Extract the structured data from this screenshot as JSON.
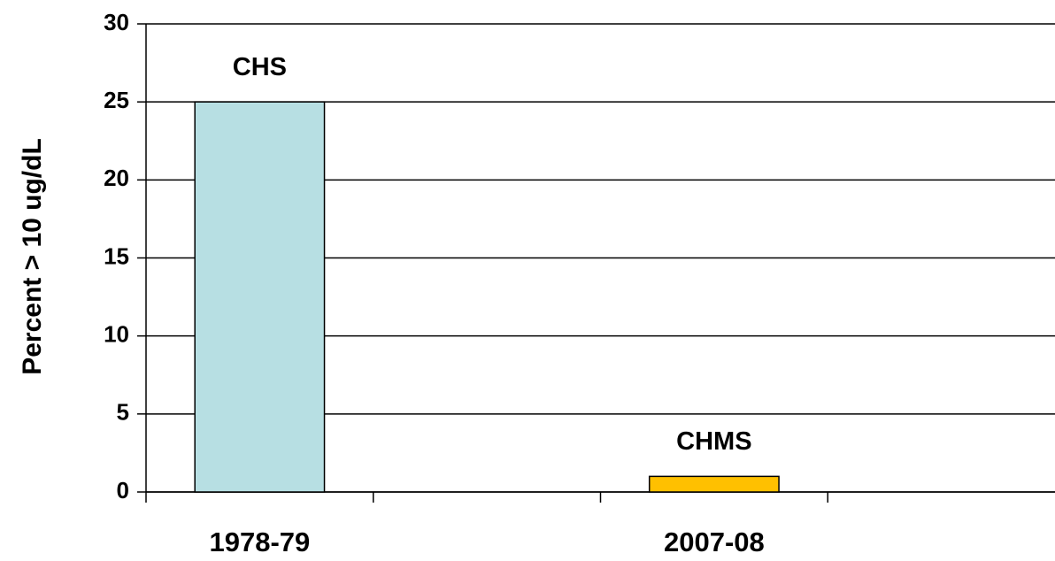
{
  "chart_data": {
    "type": "bar",
    "ylabel": "Percent > 10 ug/dL",
    "categories": [
      "1978-79",
      null,
      "2007-08",
      null
    ],
    "values": [
      25,
      null,
      1,
      null
    ],
    "colors": [
      "#b7dfe3",
      null,
      "#ffc000",
      null
    ],
    "bar_labels": [
      "CHS",
      null,
      "CHMS",
      null
    ],
    "ylim": [
      0,
      30
    ],
    "yticks": [
      0,
      5,
      10,
      15,
      20,
      25,
      30
    ],
    "grid": true
  }
}
